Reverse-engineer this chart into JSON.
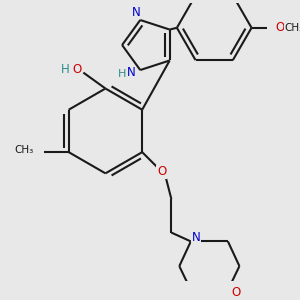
{
  "bg_color": "#e8e8e8",
  "bond_color": "#1a1a1a",
  "bond_width": 1.5,
  "atom_colors": {
    "N": "#0000cc",
    "O": "#cc0000",
    "C": "#1a1a1a",
    "H": "#2e8b8b"
  }
}
